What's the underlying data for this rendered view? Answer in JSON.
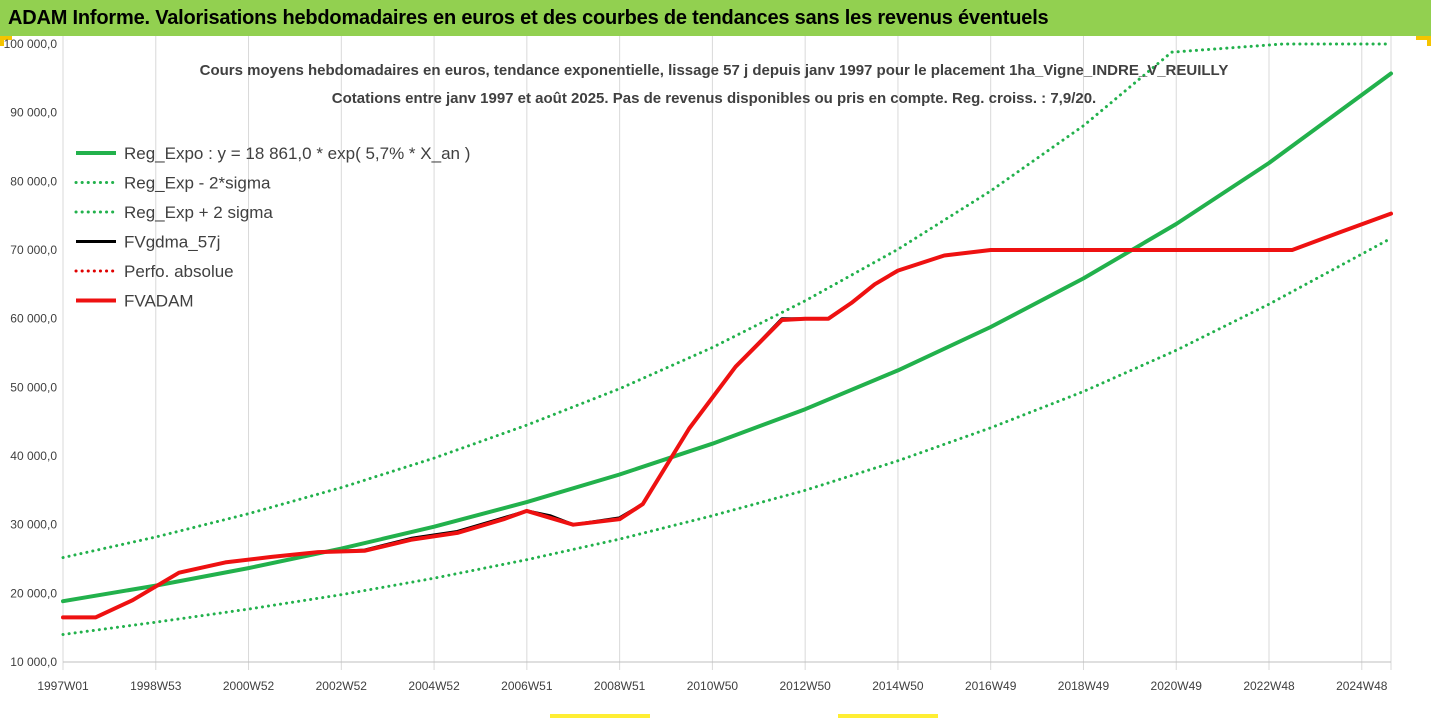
{
  "header": {
    "title": "ADAM Informe. Valorisations hebdomadaires en euros et des courbes de tendances sans les revenus éventuels"
  },
  "chart_data": {
    "type": "line",
    "title": "Cours moyens hebdomadaires en euros, tendance exponentielle, lissage 57 j depuis janv 1997 pour le placement 1ha_Vigne_INDRE_V_REUILLY",
    "subtitle": "Cotations entre janv 1997 et août 2025.  Pas de revenus disponibles ou pris en compte. Reg. croiss. : 7,9/20.",
    "xlabel": "",
    "ylabel": "",
    "ylim": [
      10000,
      100000
    ],
    "xlim": [
      1997.0,
      2025.63
    ],
    "yticks": [
      10000,
      20000,
      30000,
      40000,
      50000,
      60000,
      70000,
      80000,
      90000,
      100000
    ],
    "ytick_labels": [
      "10 000,0",
      "20 000,0",
      "30 000,0",
      "40 000,0",
      "50 000,0",
      "60 000,0",
      "70 000,0",
      "80 000,0",
      "90 000,0",
      "100 000,0"
    ],
    "xticks": [
      {
        "label": "1997W01",
        "x": 1997.0
      },
      {
        "label": "1998W53",
        "x": 1999.0
      },
      {
        "label": "2000W52",
        "x": 2001.0
      },
      {
        "label": "2002W52",
        "x": 2003.0
      },
      {
        "label": "2004W52",
        "x": 2005.0
      },
      {
        "label": "2006W51",
        "x": 2007.0
      },
      {
        "label": "2008W51",
        "x": 2009.0
      },
      {
        "label": "2010W50",
        "x": 2011.0
      },
      {
        "label": "2012W50",
        "x": 2013.0
      },
      {
        "label": "2014W50",
        "x": 2015.0
      },
      {
        "label": "2016W49",
        "x": 2017.0
      },
      {
        "label": "2018W49",
        "x": 2019.0
      },
      {
        "label": "2020W49",
        "x": 2021.0
      },
      {
        "label": "2022W48",
        "x": 2023.0
      },
      {
        "label": "2024W48",
        "x": 2025.0
      }
    ],
    "grid": "vertical",
    "legend_position": "top-left",
    "series": [
      {
        "name": "Reg_Expo : y = 18 861,0 * exp( 5,7% *  X_an )",
        "color": "#22b14c",
        "style": "solid",
        "width": 4,
        "x": [
          1997.0,
          1999.0,
          2001.0,
          2003.0,
          2005.0,
          2007.0,
          2009.0,
          2011.0,
          2013.0,
          2015.0,
          2017.0,
          2019.0,
          2021.0,
          2023.0,
          2025.63
        ],
        "y": [
          18861,
          21130,
          23670,
          26520,
          29710,
          33290,
          37300,
          41790,
          46820,
          52460,
          58780,
          65860,
          73790,
          82670,
          95710
        ]
      },
      {
        "name": "Reg_Exp - 2*sigma",
        "color": "#22b14c",
        "style": "dotted",
        "width": 3,
        "x": [
          1997.0,
          1999.0,
          2001.0,
          2003.0,
          2005.0,
          2007.0,
          2009.0,
          2011.0,
          2013.0,
          2015.0,
          2017.0,
          2019.0,
          2021.0,
          2023.0,
          2025.63
        ],
        "y": [
          14000,
          15800,
          17700,
          19800,
          22200,
          24900,
          27900,
          31300,
          35000,
          39300,
          44100,
          49400,
          55400,
          62100,
          71700
        ]
      },
      {
        "name": "Reg_Exp + 2 sigma",
        "color": "#22b14c",
        "style": "dotted",
        "width": 3,
        "x": [
          1997.0,
          1999.0,
          2001.0,
          2003.0,
          2005.0,
          2007.0,
          2009.0,
          2011.0,
          2013.0,
          2015.0,
          2017.0,
          2019.0,
          2020.9,
          2023.3,
          2025.63
        ],
        "y": [
          25200,
          28200,
          31600,
          35400,
          39700,
          44500,
          49800,
          55800,
          62600,
          70100,
          78600,
          88100,
          98800,
          100000,
          100000
        ]
      },
      {
        "name": "FVgdma_57j",
        "color": "#000000",
        "style": "solid",
        "width": 3,
        "x": [
          1997.0,
          1997.7,
          1998.5,
          1999.5,
          2000.5,
          2001.5,
          2002.5,
          2003.5,
          2004.5,
          2005.5,
          2006.5,
          2007.0,
          2007.5,
          2008.0,
          2009.0,
          2009.5,
          2010.5,
          2011.5,
          2012.5,
          2013.0,
          2013.5,
          2014.0,
          2014.5,
          2015.0,
          2016.0,
          2017.0,
          2018.0,
          2019.0,
          2020.0,
          2021.0,
          2022.0,
          2023.0,
          2023.5,
          2024.5,
          2025.63
        ],
        "y": [
          16500,
          16500,
          19000,
          23000,
          24500,
          25300,
          26000,
          26300,
          28000,
          29000,
          31000,
          32000,
          31300,
          30000,
          31000,
          33000,
          44000,
          53000,
          60000,
          60000,
          60000,
          62300,
          65000,
          67000,
          69200,
          70000,
          70000,
          70000,
          70000,
          70000,
          70000,
          70000,
          70000,
          72500,
          75300
        ]
      },
      {
        "name": "Perfo. absolue",
        "color": "#e00000",
        "style": "dotted",
        "width": 3,
        "x": [],
        "y": []
      },
      {
        "name": "FVADAM",
        "color": "#ee1111",
        "style": "solid",
        "width": 4,
        "x": [
          1997.0,
          1997.7,
          1998.5,
          1999.5,
          2000.5,
          2001.5,
          2002.5,
          2003.5,
          2004.5,
          2005.5,
          2006.5,
          2007.0,
          2007.5,
          2008.0,
          2009.0,
          2009.5,
          2010.5,
          2011.5,
          2012.5,
          2013.0,
          2013.5,
          2014.0,
          2014.5,
          2015.0,
          2016.0,
          2017.0,
          2018.0,
          2019.0,
          2020.0,
          2021.0,
          2022.0,
          2023.0,
          2023.5,
          2024.5,
          2025.63
        ],
        "y": [
          16500,
          16500,
          19000,
          23000,
          24500,
          25300,
          26000,
          26200,
          27800,
          28800,
          30800,
          32000,
          31000,
          30000,
          30800,
          33000,
          44000,
          53000,
          59800,
          60000,
          60000,
          62300,
          65000,
          67000,
          69200,
          70000,
          70000,
          70000,
          70000,
          70000,
          70000,
          70000,
          70000,
          72500,
          75300
        ]
      }
    ]
  }
}
